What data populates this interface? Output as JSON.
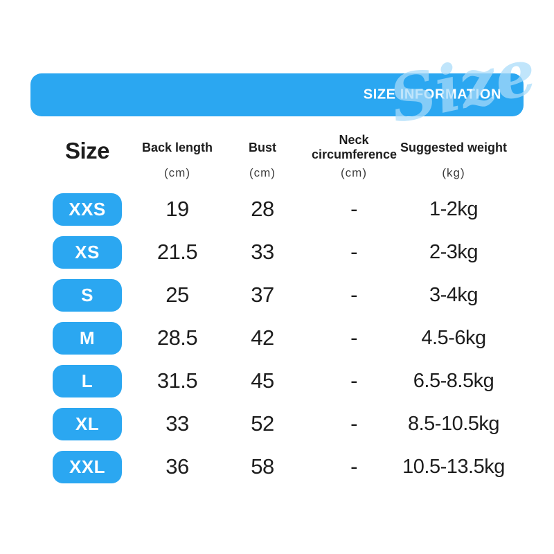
{
  "banner": {
    "title": "SIZE INFORMATION",
    "watermark": "Size",
    "color": "#2BA7F1"
  },
  "colors": {
    "accent_blue": "#2BA7F1",
    "watermark_blue": "#A8DBFA",
    "text": "#1D1D1D",
    "unit_text": "#3D3D3D",
    "background": "#FFFFFF"
  },
  "table": {
    "columns": [
      {
        "key": "size",
        "label": "Size",
        "unit": ""
      },
      {
        "key": "back_length",
        "label": "Back length",
        "unit": "(cm)"
      },
      {
        "key": "bust",
        "label": "Bust",
        "unit": "(cm)"
      },
      {
        "key": "neck",
        "label": "Neck circumference",
        "unit": "(cm)"
      },
      {
        "key": "weight",
        "label": "Suggested weight",
        "unit": "(kg)"
      }
    ],
    "rows": [
      {
        "size": "XXS",
        "back_length": "19",
        "bust": "28",
        "neck": "-",
        "weight": "1-2kg"
      },
      {
        "size": "XS",
        "back_length": "21.5",
        "bust": "33",
        "neck": "-",
        "weight": "2-3kg"
      },
      {
        "size": "S",
        "back_length": "25",
        "bust": "37",
        "neck": "-",
        "weight": "3-4kg"
      },
      {
        "size": "M",
        "back_length": "28.5",
        "bust": "42",
        "neck": "-",
        "weight": "4.5-6kg"
      },
      {
        "size": "L",
        "back_length": "31.5",
        "bust": "45",
        "neck": "-",
        "weight": "6.5-8.5kg"
      },
      {
        "size": "XL",
        "back_length": "33",
        "bust": "52",
        "neck": "-",
        "weight": "8.5-10.5kg"
      },
      {
        "size": "XXL",
        "back_length": "36",
        "bust": "58",
        "neck": "-",
        "weight": "10.5-13.5kg"
      }
    ]
  }
}
